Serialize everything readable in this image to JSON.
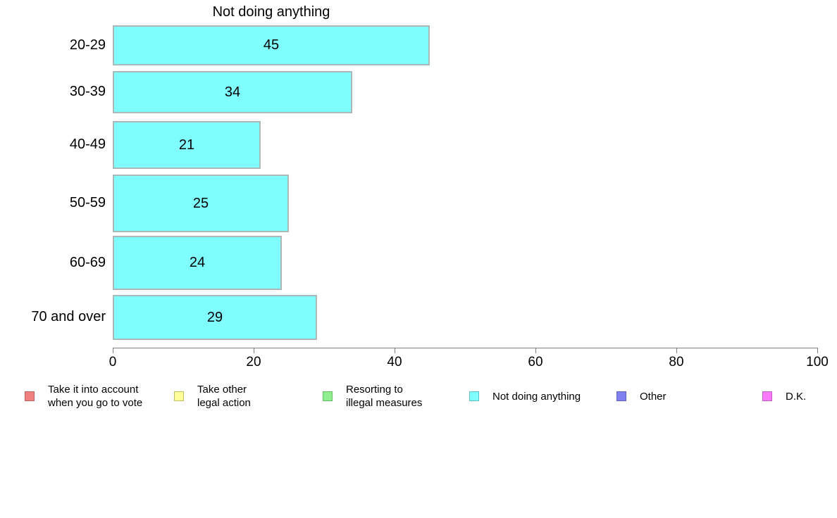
{
  "chart_data": {
    "type": "bar",
    "orientation": "horizontal",
    "title": "Not doing anything",
    "categories": [
      "20-29",
      "30-39",
      "40-49",
      "50-59",
      "60-69",
      "70 and over"
    ],
    "values": [
      45,
      34,
      21,
      25,
      24,
      29
    ],
    "value_labels": [
      "45",
      "34",
      "21",
      "25",
      "24",
      "29"
    ],
    "xlim": [
      0,
      100
    ],
    "x_ticks": [
      "0",
      "20",
      "40",
      "60",
      "80",
      "100"
    ],
    "grid": "off",
    "bar_fill_color": "#80FFFF",
    "bar_border_color": "#aab8b8",
    "legend_position": "bottom",
    "legend": [
      {
        "label": "Take it into account\nwhen you go to vote",
        "color": "#F08080",
        "border": "#c06060",
        "lines": 2
      },
      {
        "label": "Take other\nlegal action",
        "color": "#FFFF99",
        "border": "#c0c060",
        "lines": 2
      },
      {
        "label": "Resorting to\nillegal measures",
        "color": "#90EE90",
        "border": "#60c060",
        "lines": 2
      },
      {
        "label": "Not doing anything",
        "color": "#80FFFF",
        "border": "#60c0c0",
        "lines": 1
      },
      {
        "label": "Other",
        "color": "#8080F0",
        "border": "#6060c0",
        "lines": 1
      },
      {
        "label": "D.K.",
        "color": "#FA78FA",
        "border": "#c060c0",
        "lines": 1
      }
    ]
  }
}
